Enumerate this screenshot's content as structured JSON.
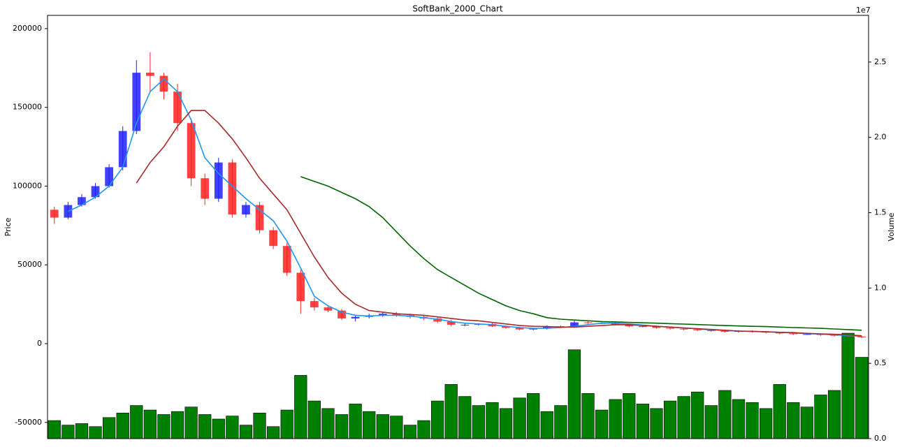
{
  "chart_data": {
    "type": "candlestick",
    "title": "SoftBank_2000_Chart",
    "ylabel": "Price",
    "y2label": "Volume",
    "y2_offset": "1e7",
    "ylim": [
      -60300,
      208400
    ],
    "yticks": [
      -50000,
      0,
      50000,
      100000,
      150000,
      200000
    ],
    "y2lim": [
      0,
      28100000
    ],
    "y2ticks": [
      {
        "value": 0,
        "label": "0.0"
      },
      {
        "value": 5000000,
        "label": "0.5"
      },
      {
        "value": 10000000,
        "label": "1.0"
      },
      {
        "value": 15000000,
        "label": "1.5"
      },
      {
        "value": 20000000,
        "label": "2.0"
      },
      {
        "value": 25000000,
        "label": "2.5"
      }
    ],
    "up_color": "#1f1fff",
    "down_color": "#ff2020",
    "open": [
      85000,
      80000,
      88000,
      93000,
      100000,
      112000,
      135000,
      172000,
      170000,
      160000,
      140000,
      105000,
      92000,
      115000,
      82000,
      88000,
      72000,
      62000,
      45000,
      27000,
      23000,
      21000,
      16000,
      17000,
      18000,
      19000,
      18000,
      17000,
      16000,
      14000,
      12000,
      12000,
      12500,
      11000,
      10000,
      9000,
      9500,
      11000,
      10500,
      13500,
      13000,
      13000,
      12000,
      11000,
      11000,
      10000,
      9500,
      9000,
      8500,
      8000,
      7500,
      8000,
      7500,
      7000,
      6500,
      6000,
      6000,
      5500,
      5000,
      4500
    ],
    "high": [
      87000,
      90000,
      95000,
      102000,
      114000,
      138000,
      180000,
      185000,
      172000,
      165000,
      143000,
      108000,
      118000,
      117000,
      90000,
      90000,
      74000,
      64000,
      47000,
      29000,
      24000,
      22000,
      18000,
      19000,
      20000,
      20000,
      19000,
      18000,
      17000,
      15000,
      13000,
      13000,
      13500,
      11500,
      10500,
      10000,
      11500,
      11500,
      14500,
      14500,
      13500,
      13500,
      12500,
      11500,
      11500,
      10500,
      10000,
      9500,
      9000,
      8500,
      8500,
      8500,
      8000,
      7500,
      7000,
      6500,
      6500,
      6000,
      5500,
      5000
    ],
    "low": [
      76000,
      79000,
      87000,
      92000,
      99000,
      110000,
      133000,
      160000,
      155000,
      135000,
      100000,
      88000,
      90000,
      80000,
      80000,
      70000,
      60000,
      43000,
      19000,
      21000,
      20000,
      15000,
      14000,
      16000,
      17000,
      17000,
      16000,
      15000,
      13000,
      11000,
      11000,
      11500,
      10500,
      9500,
      8500,
      8500,
      9000,
      10000,
      10000,
      12500,
      12500,
      11500,
      10500,
      10500,
      9500,
      9000,
      8500,
      8000,
      7500,
      7000,
      7000,
      7000,
      6500,
      6000,
      5500,
      5500,
      5000,
      4500,
      4000,
      3500
    ],
    "close": [
      80000,
      88000,
      93000,
      100000,
      112000,
      135000,
      172000,
      170000,
      160000,
      140000,
      105000,
      92000,
      115000,
      82000,
      88000,
      72000,
      62000,
      45000,
      27000,
      23000,
      21000,
      16000,
      17000,
      18000,
      19000,
      18000,
      17000,
      16000,
      14000,
      12000,
      12000,
      12500,
      11000,
      10000,
      9000,
      9500,
      11000,
      10500,
      13500,
      13000,
      13000,
      12000,
      11000,
      11000,
      10000,
      9500,
      9000,
      8500,
      8000,
      7500,
      8000,
      7500,
      7000,
      6500,
      6000,
      6000,
      5500,
      5000,
      4500,
      4000
    ],
    "volume": {
      "color": "#008000",
      "axis": "y2",
      "values": [
        1200000,
        900000,
        1000000,
        800000,
        1400000,
        1700000,
        2200000,
        1900000,
        1600000,
        1800000,
        2100000,
        1600000,
        1300000,
        1500000,
        900000,
        1700000,
        800000,
        1900000,
        4200000,
        2500000,
        2000000,
        1600000,
        2300000,
        1800000,
        1600000,
        1500000,
        900000,
        1200000,
        2500000,
        3600000,
        2800000,
        2200000,
        2400000,
        2000000,
        2700000,
        3000000,
        1800000,
        2200000,
        5900000,
        3000000,
        1900000,
        2600000,
        3000000,
        2300000,
        2000000,
        2500000,
        2800000,
        3100000,
        2200000,
        3200000,
        2600000,
        2400000,
        2000000,
        3600000,
        2400000,
        2100000,
        2900000,
        3200000,
        7000000,
        5400000
      ]
    },
    "series": [
      {
        "color": "#2196f3",
        "values": [
          null,
          84000,
          88000,
          93000,
          100000,
          112000,
          140000,
          160000,
          168000,
          160000,
          142000,
          118000,
          108000,
          100000,
          92000,
          85000,
          78000,
          65000,
          48000,
          30000,
          24000,
          20000,
          18000,
          17500,
          18000,
          18000,
          17500,
          16500,
          15500,
          14000,
          13000,
          12500,
          12000,
          11000,
          10200,
          9700,
          9800,
          10200,
          11000,
          12000,
          13000,
          13000,
          12500,
          11800,
          11000,
          10500,
          10000,
          9300,
          8800,
          8300,
          8000,
          7800,
          7600,
          7200,
          6800,
          6400,
          6000,
          5600,
          5100,
          4600
        ]
      },
      {
        "color": "#a52a2a",
        "values": [
          null,
          null,
          null,
          null,
          null,
          null,
          102000,
          115000,
          125000,
          138000,
          148000,
          148000,
          140000,
          130000,
          118000,
          105000,
          95000,
          85000,
          70000,
          55000,
          42000,
          32000,
          25000,
          21000,
          20000,
          19000,
          18500,
          18000,
          17000,
          16000,
          15000,
          14500,
          13500,
          12500,
          11500,
          11000,
          10800,
          10500,
          10500,
          11000,
          11500,
          12000,
          12000,
          11500,
          11000,
          10500,
          10000,
          9500,
          9000,
          8500,
          8000,
          7800,
          7500,
          7200,
          7000,
          6500,
          6200,
          6000,
          5500,
          5000
        ]
      },
      {
        "color": "#006400",
        "values": [
          null,
          null,
          null,
          null,
          null,
          null,
          null,
          null,
          null,
          null,
          null,
          null,
          null,
          null,
          null,
          null,
          null,
          null,
          106000,
          103000,
          100000,
          96000,
          92000,
          87000,
          80000,
          71000,
          62000,
          54000,
          47000,
          42000,
          37000,
          32000,
          28000,
          24000,
          21000,
          19000,
          16500,
          15500,
          15000,
          14500,
          14000,
          13800,
          13500,
          13200,
          13000,
          12700,
          12400,
          12100,
          11800,
          11500,
          11200,
          11000,
          10800,
          10500,
          10200,
          10000,
          9700,
          9300,
          8900,
          8500
        ]
      }
    ]
  }
}
